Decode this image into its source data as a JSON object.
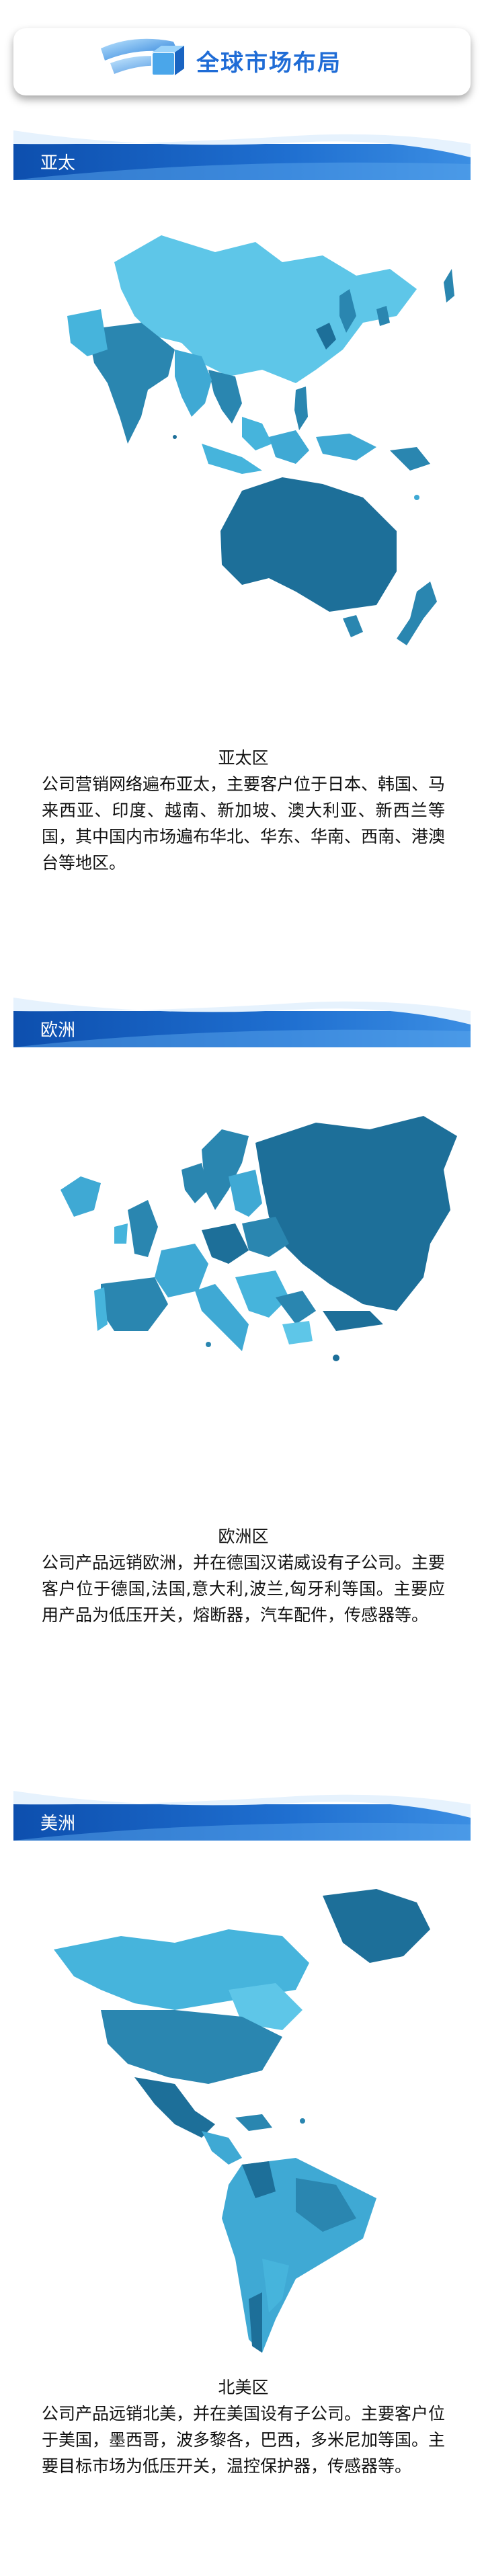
{
  "header": {
    "title": "全球市场布局"
  },
  "sections": [
    {
      "banner": "亚太",
      "region": "亚太区",
      "text": "公司营销网络遍布亚太，主要客户位于日本、韩国、马来西亚、印度、越南、新加坡、澳大利亚、新西兰等国，其中国内市场遍布华北、华东、华南、西南、港澳台等地区。"
    },
    {
      "banner": "欧洲",
      "region": "欧洲区",
      "text": "公司产品远销欧洲，并在德国汉诺威设有子公司。主要客户位于德国,法国,意大利,波兰,匈牙利等国。主要应用产品为低压开关，熔断器，汽车配件，传感器等。"
    },
    {
      "banner": "美洲",
      "region": "北美区",
      "text": "公司产品远销北美，并在美国设有子公司。主要客户位于美国，墨西哥，波多黎各，巴西，多米尼加等国。主要目标市场为低压开关，温控保护器，传感器等。"
    }
  ]
}
